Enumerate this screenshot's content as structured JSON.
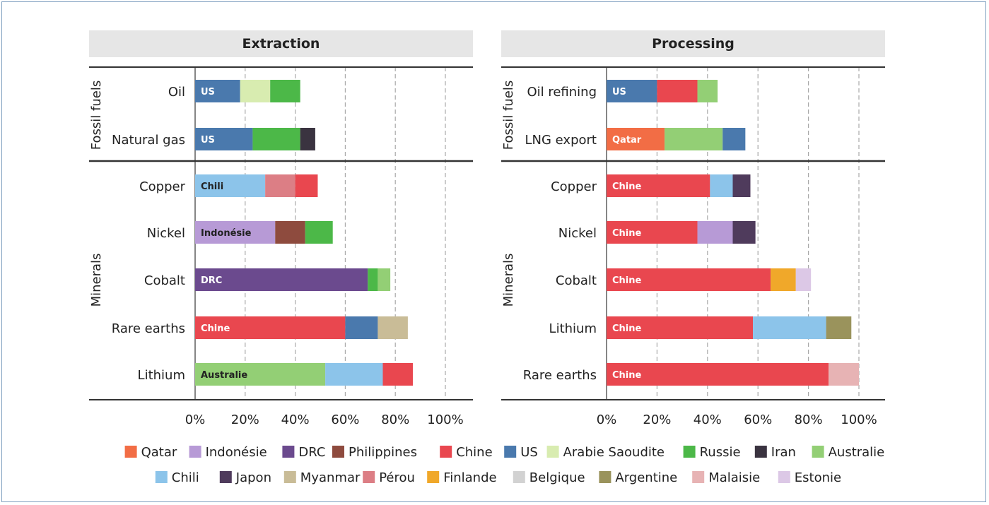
{
  "colors": {
    "Qatar": "#f26d45",
    "Indonésie": "#b79ad6",
    "DRC": "#6b4a8e",
    "Philippines": "#8e4b3e",
    "Chine": "#e9474f",
    "US": "#4a79ad",
    "Arabie Saoudite": "#d8ecb0",
    "Russie": "#4cb848",
    "Iran": "#3a3340",
    "Australie": "#93cf75",
    "Chili": "#8cc4ea",
    "Japon": "#4f3b5c",
    "Myanmar": "#c9bc97",
    "Pérou": "#dc7e85",
    "Finlande": "#f0a82a",
    "Belgique": "#d2d2d2",
    "Argentine": "#9a935c",
    "Malaisie": "#e7b3b4",
    "Estonie": "#dcc8e6"
  },
  "legend": {
    "row1": [
      "Qatar",
      "Indonésie",
      "DRC",
      "Philippines",
      "Chine",
      "US",
      "Arabie Saoudite",
      "Russie",
      "Iran",
      "Australie"
    ],
    "row2": [
      "Chili",
      "Japon",
      "Myanmar",
      "Pérou",
      "Finlande",
      "Belgique",
      "Argentine",
      "Malaisie",
      "Estonie"
    ]
  },
  "chart_data": [
    {
      "type": "bar",
      "orientation": "horizontal",
      "stacked": true,
      "title": "Extraction",
      "xlim": [
        0,
        100
      ],
      "xticks": [
        "0%",
        "20%",
        "40%",
        "60%",
        "80%",
        "100%"
      ],
      "grid": true,
      "groups": [
        {
          "name": "Fossil fuels",
          "rows": [
            {
              "label": "Oil",
              "segments": [
                {
                  "country": "US",
                  "value": 18,
                  "label": "US"
                },
                {
                  "country": "Arabie Saoudite",
                  "value": 12
                },
                {
                  "country": "Russie",
                  "value": 12
                }
              ]
            },
            {
              "label": "Natural gas",
              "segments": [
                {
                  "country": "US",
                  "value": 23,
                  "label": "US"
                },
                {
                  "country": "Russie",
                  "value": 19
                },
                {
                  "country": "Iran",
                  "value": 6
                }
              ]
            }
          ]
        },
        {
          "name": "Minerals",
          "rows": [
            {
              "label": "Copper",
              "segments": [
                {
                  "country": "Chili",
                  "value": 28,
                  "label": "Chili"
                },
                {
                  "country": "Pérou",
                  "value": 12
                },
                {
                  "country": "Chine",
                  "value": 9
                }
              ]
            },
            {
              "label": "Nickel",
              "segments": [
                {
                  "country": "Indonésie",
                  "value": 32,
                  "label": "Indonésie"
                },
                {
                  "country": "Philippines",
                  "value": 12
                },
                {
                  "country": "Russie",
                  "value": 11
                }
              ]
            },
            {
              "label": "Cobalt",
              "segments": [
                {
                  "country": "DRC",
                  "value": 69,
                  "label": "DRC"
                },
                {
                  "country": "Russie",
                  "value": 4
                },
                {
                  "country": "Australie",
                  "value": 5
                }
              ]
            },
            {
              "label": "Rare earths",
              "segments": [
                {
                  "country": "Chine",
                  "value": 60,
                  "label": "Chine"
                },
                {
                  "country": "US",
                  "value": 13
                },
                {
                  "country": "Myanmar",
                  "value": 12
                }
              ]
            },
            {
              "label": "Lithium",
              "segments": [
                {
                  "country": "Australie",
                  "value": 52,
                  "label": "Australie"
                },
                {
                  "country": "Chili",
                  "value": 23
                },
                {
                  "country": "Chine",
                  "value": 12
                }
              ]
            }
          ]
        }
      ]
    },
    {
      "type": "bar",
      "orientation": "horizontal",
      "stacked": true,
      "title": "Processing",
      "xlim": [
        0,
        100
      ],
      "xticks": [
        "0%",
        "20%",
        "40%",
        "60%",
        "80%",
        "100%"
      ],
      "grid": true,
      "groups": [
        {
          "name": "Fossil fuels",
          "rows": [
            {
              "label": "Oil refining",
              "segments": [
                {
                  "country": "US",
                  "value": 20,
                  "label": "US"
                },
                {
                  "country": "Chine",
                  "value": 16
                },
                {
                  "country": "Australie",
                  "value": 8
                }
              ]
            },
            {
              "label": "LNG export",
              "segments": [
                {
                  "country": "Qatar",
                  "value": 23,
                  "label": "Qatar"
                },
                {
                  "country": "Australie",
                  "value": 23
                },
                {
                  "country": "US",
                  "value": 9
                }
              ]
            }
          ]
        },
        {
          "name": "Minerals",
          "rows": [
            {
              "label": "Copper",
              "segments": [
                {
                  "country": "Chine",
                  "value": 41,
                  "label": "Chine"
                },
                {
                  "country": "Chili",
                  "value": 9
                },
                {
                  "country": "Japon",
                  "value": 7
                }
              ]
            },
            {
              "label": "Nickel",
              "segments": [
                {
                  "country": "Chine",
                  "value": 36,
                  "label": "Chine"
                },
                {
                  "country": "Indonésie",
                  "value": 14
                },
                {
                  "country": "Japon",
                  "value": 9
                }
              ]
            },
            {
              "label": "Cobalt",
              "segments": [
                {
                  "country": "Chine",
                  "value": 65,
                  "label": "Chine"
                },
                {
                  "country": "Finlande",
                  "value": 10
                },
                {
                  "country": "Estonie",
                  "value": 6
                }
              ]
            },
            {
              "label": "Lithium",
              "segments": [
                {
                  "country": "Chine",
                  "value": 58,
                  "label": "Chine"
                },
                {
                  "country": "Chili",
                  "value": 29
                },
                {
                  "country": "Argentine",
                  "value": 10
                }
              ]
            },
            {
              "label": "Rare earths",
              "segments": [
                {
                  "country": "Chine",
                  "value": 88,
                  "label": "Chine"
                },
                {
                  "country": "Malaisie",
                  "value": 12
                }
              ]
            }
          ]
        }
      ]
    }
  ]
}
